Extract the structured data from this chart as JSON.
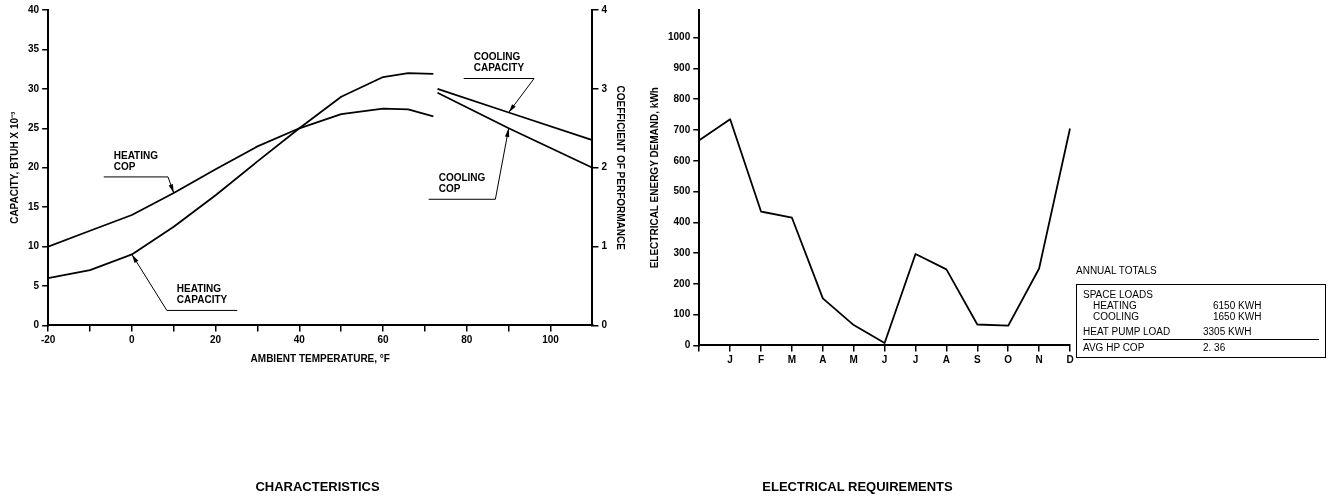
{
  "chart_data": [
    {
      "type": "line",
      "title": "CHARACTERISTICS",
      "xlabel": "AMBIENT TEMPERATURE, °F",
      "ylabel": "CAPACITY, BTUH X 10⁻³",
      "y2label": "COEFFICIENT OF PERFORMANCE",
      "xlim": [
        -20,
        110
      ],
      "xticks": [
        -20,
        {
          "value": -10,
          "label": null
        },
        0,
        {
          "value": 10,
          "label": null
        },
        20,
        {
          "value": 30,
          "label": null
        },
        40,
        {
          "value": 50,
          "label": null
        },
        60,
        {
          "value": 70,
          "label": null
        },
        80,
        {
          "value": 90,
          "label": null
        },
        100
      ],
      "ylim": [
        0,
        40
      ],
      "yticks": [
        0,
        5,
        10,
        15,
        20,
        25,
        30,
        35,
        40
      ],
      "y2lim": [
        0,
        4
      ],
      "y2ticks": [
        0,
        1,
        2,
        3,
        4
      ],
      "grid": false,
      "legend": false,
      "series": [
        {
          "name": "HEATING COP",
          "color": "#000000",
          "axis": "y2",
          "x": [
            -20,
            -10,
            0,
            10,
            20,
            30,
            40,
            50,
            60,
            66,
            72
          ],
          "values": [
            1.0,
            1.2,
            1.4,
            1.68,
            1.98,
            2.27,
            2.5,
            2.68,
            2.75,
            2.74,
            2.65
          ]
        },
        {
          "name": "HEATING CAPACITY",
          "color": "#000000",
          "x": [
            -20,
            -10,
            0,
            10,
            20,
            30,
            40,
            50,
            60,
            66,
            72
          ],
          "values": [
            6,
            7,
            9,
            12.5,
            16.5,
            20.8,
            25,
            29,
            31.5,
            32,
            31.9
          ]
        },
        {
          "name": "COOLING CAPACITY",
          "color": "#000000",
          "x": [
            73,
            90,
            110
          ],
          "values": [
            30,
            27,
            23.5
          ]
        },
        {
          "name": "COOLING COP",
          "color": "#000000",
          "axis": "y2",
          "x": [
            73,
            90,
            110
          ],
          "values": [
            2.95,
            2.5,
            2.0
          ]
        }
      ]
    },
    {
      "type": "line",
      "title": "ELECTRICAL REQUIREMENTS",
      "ylabel": "ELECTRICAL ENERGY DEMAND, kWh",
      "categories": [
        null,
        "J",
        "F",
        "M",
        "A",
        "M",
        "J",
        "J",
        "A",
        "S",
        "O",
        "N",
        "D"
      ],
      "ylim": [
        0,
        1090
      ],
      "yticks": [
        0,
        100,
        200,
        300,
        400,
        500,
        600,
        700,
        800,
        900,
        1000
      ],
      "grid": false,
      "legend": false,
      "series": [
        {
          "color": "#000000",
          "values": [
            667,
            735,
            435,
            415,
            153,
            66,
            8,
            297,
            247,
            68,
            64,
            250,
            705
          ]
        }
      ],
      "annotations": [
        "ANNUAL TOTALS",
        "SPACE LOADS",
        "HEATING\t6150 KWH",
        "COOLING\t1650 KWH",
        "HEAT PUMP LOAD\t3305 KWH",
        "AVG HP COP\t2. 36"
      ]
    }
  ]
}
